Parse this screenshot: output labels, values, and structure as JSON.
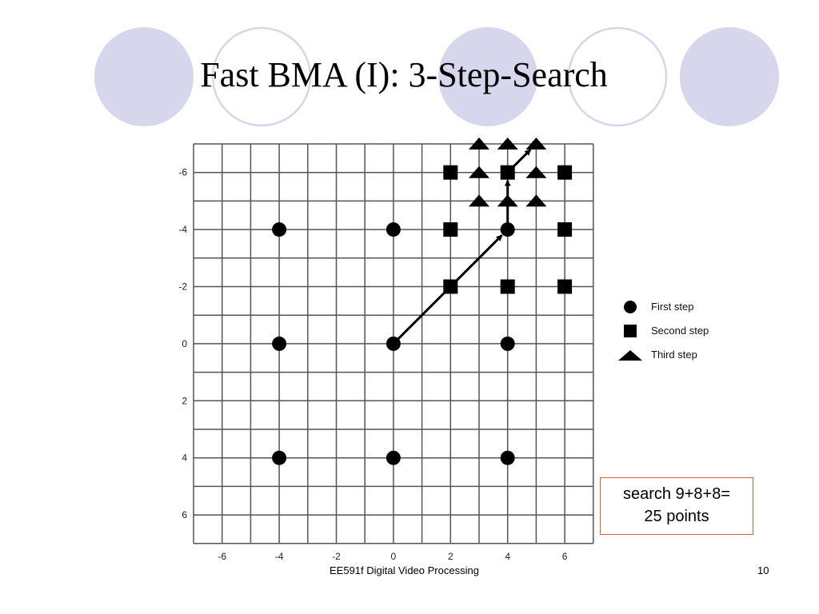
{
  "slide": {
    "title": "Fast BMA (I): 3-Step-Search",
    "note_line1": "search 9+8+8=",
    "note_line2": "25 points",
    "footer": "EE591f Digital Video Processing",
    "page_number": "10"
  },
  "colors": {
    "circle_fill": "#d6d6ec",
    "circle_ring": "#d6d6ec",
    "grid": "#555555",
    "marker": "#000000",
    "note_border": "#d9642e"
  },
  "legend": [
    {
      "shape": "circle",
      "label": "First step"
    },
    {
      "shape": "square",
      "label": "Second step"
    },
    {
      "shape": "triangle",
      "label": "Third step"
    }
  ],
  "chart_data": {
    "type": "scatter",
    "x_ticks": [
      "-6",
      "-4",
      "-2",
      "0",
      "2",
      "4",
      "6"
    ],
    "y_ticks": [
      "-6",
      "-4",
      "-2",
      "0",
      "2",
      "4",
      "6"
    ],
    "xlim": [
      -7,
      7
    ],
    "ylim": [
      -7,
      7
    ],
    "y_direction": "down",
    "grid": true,
    "series": [
      {
        "name": "First step",
        "marker": "circle",
        "points": [
          [
            -4,
            -4
          ],
          [
            0,
            -4
          ],
          [
            4,
            -4
          ],
          [
            -4,
            0
          ],
          [
            0,
            0
          ],
          [
            4,
            0
          ],
          [
            -4,
            4
          ],
          [
            0,
            4
          ],
          [
            4,
            4
          ]
        ]
      },
      {
        "name": "Second step",
        "marker": "square",
        "points": [
          [
            2,
            -6
          ],
          [
            4,
            -6
          ],
          [
            6,
            -6
          ],
          [
            2,
            -4
          ],
          [
            6,
            -4
          ],
          [
            2,
            -2
          ],
          [
            4,
            -2
          ],
          [
            6,
            -2
          ]
        ]
      },
      {
        "name": "Third step",
        "marker": "triangle",
        "points": [
          [
            3,
            -7
          ],
          [
            4,
            -7
          ],
          [
            5,
            -7
          ],
          [
            3,
            -6
          ],
          [
            5,
            -6
          ],
          [
            3,
            -5
          ],
          [
            4,
            -5
          ],
          [
            5,
            -5
          ]
        ]
      }
    ],
    "search_path": [
      [
        0,
        0
      ],
      [
        4,
        -4
      ],
      [
        4,
        -6
      ],
      [
        5,
        -7
      ]
    ]
  }
}
